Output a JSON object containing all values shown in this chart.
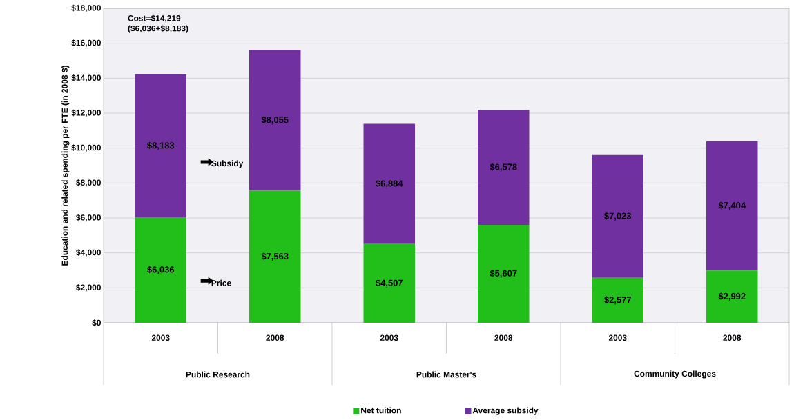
{
  "chart_data": {
    "type": "bar",
    "stacked": true,
    "ylabel": "Education and related spending per FTE (in 2008 $)",
    "categories": [
      "2003",
      "2008",
      "2003",
      "2008",
      "2003",
      "2008"
    ],
    "series": [
      {
        "name": "Net tuition",
        "color": "#22bf1a",
        "values": [
          6036,
          7563,
          4507,
          5607,
          2577,
          2992
        ],
        "value_labels": [
          "$6,036",
          "$7,563",
          "$4,507",
          "$5,607",
          "$2,577",
          "$2,992"
        ]
      },
      {
        "name": "Average subsidy",
        "color": "#7030a0",
        "values": [
          8183,
          8055,
          6884,
          6578,
          7023,
          7404
        ],
        "value_labels": [
          "$8,183",
          "$8,055",
          "$6,884",
          "$6,578",
          "$7,023",
          "$7,404"
        ]
      }
    ],
    "ylim": [
      0,
      18000
    ],
    "yticks": [
      {
        "value": 0,
        "label": "$0"
      },
      {
        "value": 2000,
        "label": "$2,000"
      },
      {
        "value": 4000,
        "label": "$4,000"
      },
      {
        "value": 6000,
        "label": "$6,000"
      },
      {
        "value": 8000,
        "label": "$8,000"
      },
      {
        "value": 10000,
        "label": "$10,000"
      },
      {
        "value": 12000,
        "label": "$12,000"
      },
      {
        "value": 14000,
        "label": "$14,000"
      },
      {
        "value": 16000,
        "label": "$16,000"
      },
      {
        "value": 18000,
        "label": "$18,000"
      }
    ],
    "grid": "y",
    "legend": "bottom",
    "annotations": [
      "Cost=$14,219",
      "($6,036+$8,183)",
      "Subsidy",
      "Price",
      "Public Research",
      "Public Master's",
      "Community Colleges"
    ]
  }
}
